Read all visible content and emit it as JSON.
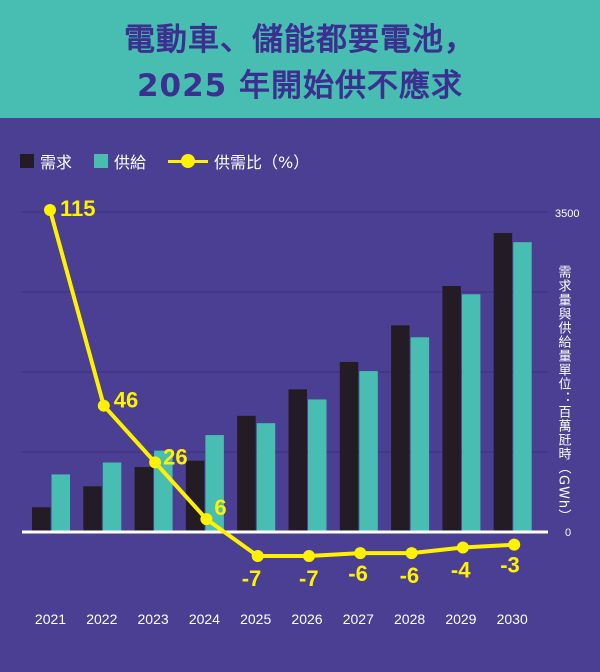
{
  "header": {
    "title_line1": "電動車、儲能都要電池，",
    "title_line2": "2025 年開始供不應求"
  },
  "legend": {
    "demand": "需求",
    "supply": "供給",
    "ratio": "供需比（%）"
  },
  "colors": {
    "background": "#4a3f93",
    "header": "#48bdb1",
    "demand": "#231c24",
    "supply": "#48bdb1",
    "ratio_line": "#fff200",
    "title": "#3b2f8f"
  },
  "chart_data": {
    "type": "bar+line",
    "title": "電動車、儲能都要電池，2025 年開始供不應求",
    "categories": [
      "2021",
      "2022",
      "2023",
      "2024",
      "2025",
      "2026",
      "2027",
      "2028",
      "2029",
      "2030"
    ],
    "series": [
      {
        "name": "需求",
        "type": "bar",
        "axis": "right",
        "values": [
          270,
          500,
          710,
          780,
          1270,
          1560,
          1860,
          2260,
          2690,
          3270
        ]
      },
      {
        "name": "供給",
        "type": "bar",
        "axis": "right",
        "values": [
          630,
          760,
          890,
          1060,
          1190,
          1450,
          1760,
          2130,
          2600,
          3170
        ]
      },
      {
        "name": "供需比（%）",
        "type": "line",
        "axis": "ratio",
        "values": [
          115,
          46,
          26,
          6,
          -7,
          -7,
          -6,
          -6,
          -4,
          -3
        ]
      }
    ],
    "ratio_labels": [
      "115",
      "46",
      "26",
      "6",
      "-7",
      "-7",
      "-6",
      "-6",
      "-4",
      "-3"
    ],
    "y_right": {
      "label": "需求量與供給量單位：百萬瓩時（GWh）",
      "ticks": [
        "3500",
        "0"
      ],
      "range": [
        0,
        3500
      ]
    },
    "ratio_range": [
      -7,
      115
    ],
    "grid": true
  }
}
